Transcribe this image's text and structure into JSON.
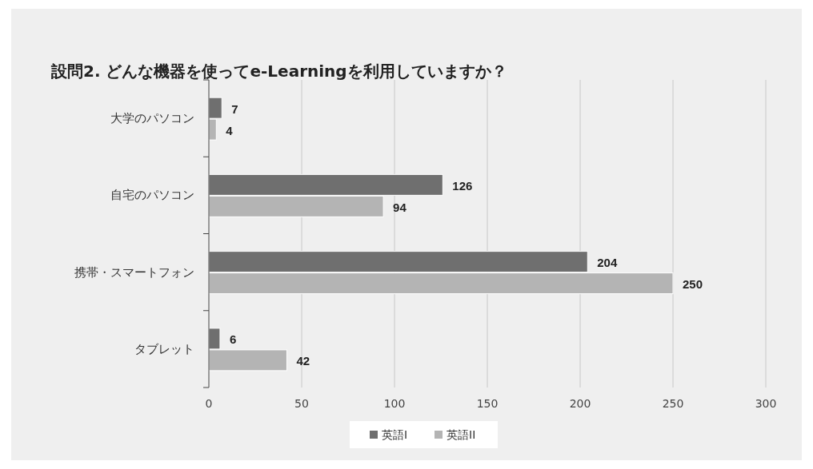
{
  "chart_data": {
    "type": "bar",
    "orientation": "horizontal",
    "title": "設問2. どんな機器を使ってe-Learningを利用していますか？",
    "categories": [
      "大学のパソコン",
      "自宅のパソコン",
      "携帯・スマートフォン",
      "タブレット"
    ],
    "series": [
      {
        "name": "英語I",
        "color": "#6f6f6f",
        "values": [
          7,
          126,
          204,
          6
        ]
      },
      {
        "name": "英語II",
        "color": "#b4b4b4",
        "values": [
          4,
          94,
          250,
          42
        ]
      }
    ],
    "xlim": [
      0,
      300
    ],
    "xticks": [
      0,
      50,
      100,
      150,
      200,
      250,
      300
    ],
    "grid": "x",
    "legend": "bottom",
    "data_labels": true
  }
}
